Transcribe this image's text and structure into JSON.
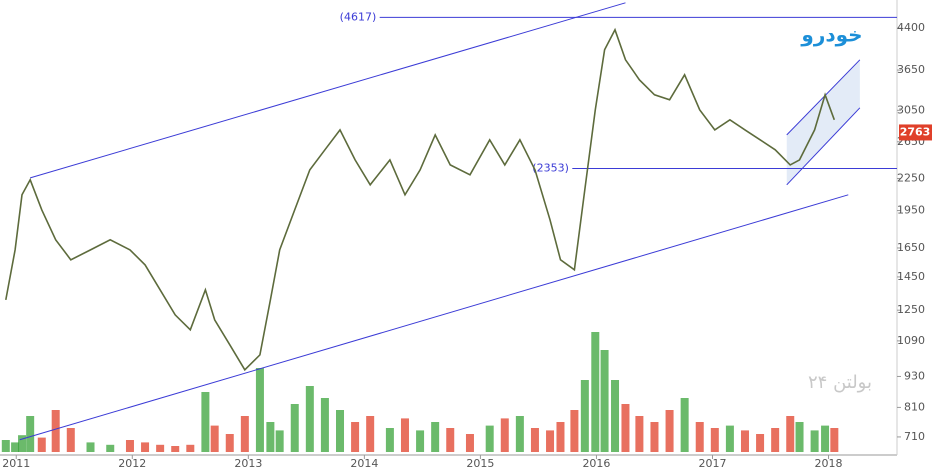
{
  "chart_data": {
    "type": "line",
    "title": "خودرو",
    "watermark": "بولتن ۲۴",
    "log_y": true,
    "color": "#5d6b3c",
    "up_color": "#3aa33a",
    "down_color": "#e0402a",
    "x": [
      2010.91,
      2010.99,
      2011.05,
      2011.12,
      2011.22,
      2011.34,
      2011.47,
      2011.64,
      2011.81,
      2011.98,
      2012.11,
      2012.24,
      2012.37,
      2012.5,
      2012.63,
      2012.71,
      2012.84,
      2012.97,
      2013.1,
      2013.19,
      2013.27,
      2013.4,
      2013.53,
      2013.66,
      2013.79,
      2013.92,
      2014.05,
      2014.22,
      2014.35,
      2014.48,
      2014.61,
      2014.74,
      2014.91,
      2015.08,
      2015.21,
      2015.34,
      2015.47,
      2015.6,
      2015.69,
      2015.81,
      2015.9,
      2015.99,
      2016.07,
      2016.16,
      2016.25,
      2016.37,
      2016.5,
      2016.63,
      2016.76,
      2016.89,
      2017.02,
      2017.15,
      2017.28,
      2017.41,
      2017.54,
      2017.67,
      2017.75,
      2017.88,
      2017.97,
      2018.05
    ],
    "values": [
      1309,
      1636,
      2092,
      2237,
      1956,
      1711,
      1565,
      1636,
      1711,
      1636,
      1530,
      1369,
      1224,
      1145,
      1369,
      1197,
      1071,
      958,
      1024,
      1309,
      1636,
      1956,
      2338,
      2557,
      2795,
      2445,
      2187,
      2445,
      2092,
      2338,
      2733,
      2391,
      2287,
      2674,
      2391,
      2674,
      2338,
      1871,
      1565,
      1497,
      2139,
      3057,
      3996,
      4369,
      3821,
      3495,
      3269,
      3196,
      3574,
      3057,
      2795,
      2923,
      2795,
      2674,
      2557,
      2391,
      2445,
      2795,
      3269,
      2923
    ],
    "volume": [
      10,
      8,
      14,
      30,
      12,
      35,
      20,
      8,
      6,
      10,
      8,
      6,
      5,
      6,
      50,
      22,
      15,
      30,
      70,
      25,
      18,
      40,
      55,
      45,
      35,
      25,
      30,
      20,
      28,
      18,
      25,
      20,
      15,
      22,
      28,
      30,
      20,
      18,
      25,
      35,
      60,
      100,
      85,
      60,
      40,
      30,
      25,
      35,
      45,
      25,
      20,
      22,
      18,
      15,
      20,
      30,
      25,
      18,
      22,
      20
    ],
    "last_price": 2763,
    "xlim": [
      2010.86,
      2018.59
    ],
    "ylim": [
      655,
      4990
    ],
    "xticks": [
      2011,
      2012,
      2013,
      2014,
      2015,
      2016,
      2017,
      2018
    ],
    "yticks": [
      710,
      810,
      930,
      1090,
      1250,
      1450,
      1650,
      1950,
      2250,
      2650,
      3050,
      3650,
      4400
    ],
    "levels": [
      {
        "value": 4617,
        "label": "(4617)",
        "x": 2013.77
      },
      {
        "value": 2353,
        "label": "(2353)",
        "x": 2015.43
      }
    ],
    "trendlines": [
      {
        "x": [
          2011.12,
          2016.25
        ],
        "y": [
          2256,
          4928
        ]
      },
      {
        "x": [
          2011.03,
          2018.17
        ],
        "y": [
          701,
          2092
        ]
      },
      {
        "x": [
          2017.64,
          2018.27
        ],
        "y": [
          2733,
          3821
        ]
      },
      {
        "x": [
          2017.64,
          2018.27
        ],
        "y": [
          2187,
          3084
        ]
      }
    ]
  }
}
